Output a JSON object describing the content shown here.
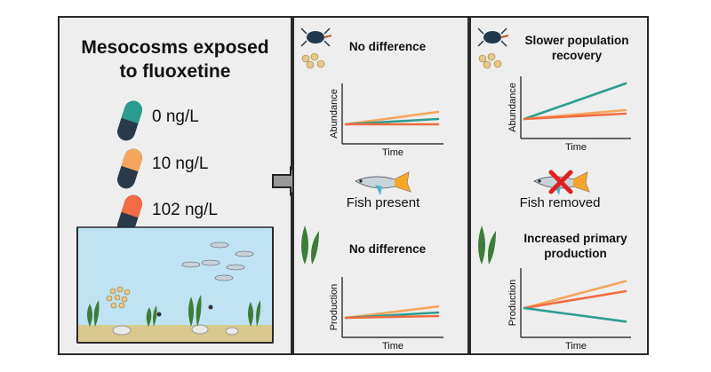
{
  "left_panel": {
    "title": "Mesocosms exposed\nto fluoxetine",
    "doses": [
      {
        "label": "0 ng/L",
        "color": "#2a9d8f"
      },
      {
        "label": "10 ng/L",
        "color": "#f5a65b"
      },
      {
        "label": "102 ng/L",
        "color": "#f26b43"
      }
    ],
    "tank_water_color": "#bfe3f2",
    "tank_sediment_color": "#d9c98e"
  },
  "middle_panel": {
    "top_heading": "No difference",
    "fish_label": "Fish present",
    "bottom_heading": "No difference"
  },
  "right_panel": {
    "top_heading": "Slower population\nrecovery",
    "fish_label": "Fish removed",
    "bottom_heading": "Increased primary\nproduction"
  },
  "chart_data": [
    {
      "type": "line",
      "ylabel": "Abundance",
      "xlabel": "Time",
      "series": [
        {
          "color": "#f5a65b",
          "values": [
            0.0,
            0.35
          ]
        },
        {
          "color": "#2a9d8f",
          "values": [
            0.0,
            0.15
          ]
        },
        {
          "color": "#f26b43",
          "values": [
            0.0,
            0.0
          ]
        }
      ]
    },
    {
      "type": "line",
      "ylabel": "Production",
      "xlabel": "Time",
      "series": [
        {
          "color": "#f5a65b",
          "values": [
            0.0,
            0.32
          ]
        },
        {
          "color": "#2a9d8f",
          "values": [
            0.0,
            0.15
          ]
        },
        {
          "color": "#f26b43",
          "values": [
            0.0,
            0.05
          ]
        }
      ]
    },
    {
      "type": "line",
      "ylabel": "Abundance",
      "xlabel": "Time",
      "series": [
        {
          "color": "#2a9d8f",
          "values": [
            0.0,
            1.0
          ]
        },
        {
          "color": "#f5a65b",
          "values": [
            0.0,
            0.25
          ]
        },
        {
          "color": "#f26b43",
          "values": [
            0.0,
            0.15
          ]
        }
      ]
    },
    {
      "type": "line",
      "ylabel": "Production",
      "xlabel": "Time",
      "series": [
        {
          "color": "#f5a65b",
          "values": [
            0.0,
            0.8
          ]
        },
        {
          "color": "#f26b43",
          "values": [
            0.0,
            0.5
          ]
        },
        {
          "color": "#2a9d8f",
          "values": [
            0.0,
            -0.4
          ]
        }
      ]
    }
  ],
  "icons": {
    "fish": "guppy-fish-icon",
    "plant": "aquatic-plant-icon",
    "invertebrates": "zooplankton-icon",
    "removed": "red-x-icon"
  }
}
